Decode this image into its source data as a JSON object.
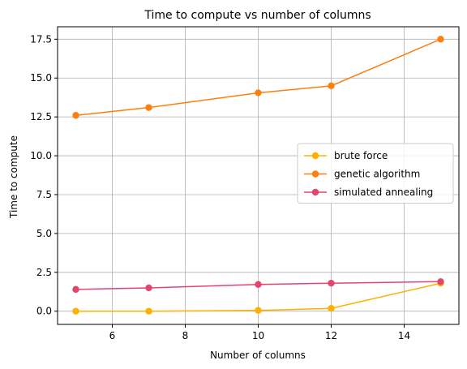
{
  "chart_data": {
    "type": "line",
    "title": "Time to compute vs number of columns",
    "xlabel": "Number of columns",
    "ylabel": "Time to compute",
    "x": [
      5,
      7,
      10,
      12,
      15
    ],
    "xlim": [
      4.5,
      15.5
    ],
    "ylim": [
      -0.85,
      18.3
    ],
    "xticks": [
      6,
      8,
      10,
      12,
      14
    ],
    "yticks": [
      0.0,
      2.5,
      5.0,
      7.5,
      10.0,
      12.5,
      15.0,
      17.5
    ],
    "xtick_labels": [
      "6",
      "8",
      "10",
      "12",
      "14"
    ],
    "ytick_labels": [
      "0.0",
      "2.5",
      "5.0",
      "7.5",
      "10.0",
      "12.5",
      "15.0",
      "17.5"
    ],
    "grid": true,
    "legend_position": "center-right",
    "series": [
      {
        "name": "brute force",
        "color": "#ffb000",
        "values": [
          0.0,
          0.0,
          0.05,
          0.18,
          1.8
        ]
      },
      {
        "name": "genetic algorithm",
        "color": "#fe7f0e",
        "values": [
          12.6,
          13.1,
          14.05,
          14.5,
          17.5
        ]
      },
      {
        "name": "simulated annealing",
        "color": "#e5446d",
        "values": [
          1.4,
          1.5,
          1.72,
          1.8,
          1.9
        ]
      }
    ]
  }
}
